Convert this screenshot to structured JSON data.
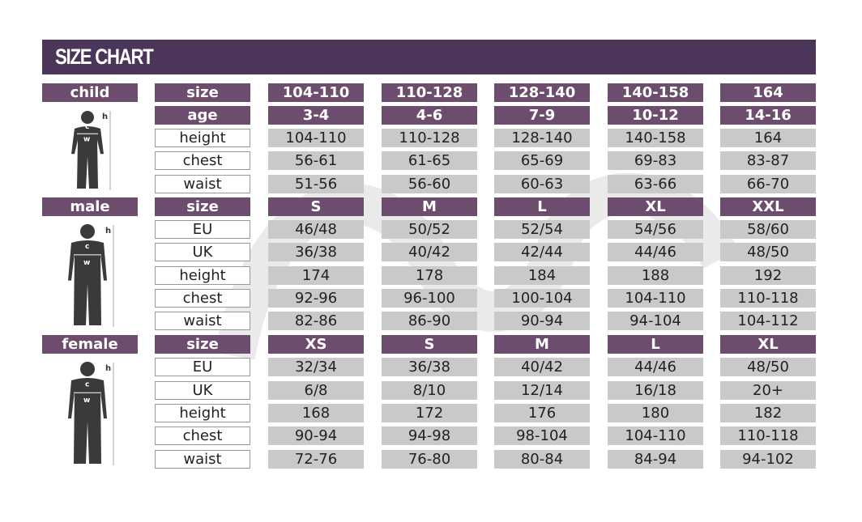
{
  "title": "SIZE CHART",
  "colors": {
    "header": "#4b3559",
    "label": "#6d4d6d",
    "value": "#c9c9c9"
  },
  "groups": [
    {
      "name": "child",
      "figure_icon": "child-silhouette-icon",
      "rows": [
        {
          "label": "size",
          "style": "purple",
          "values": [
            "104-110",
            "110-128",
            "128-140",
            "140-158",
            "164"
          ]
        },
        {
          "label": "age",
          "style": "purple",
          "values": [
            "3-4",
            "4-6",
            "7-9",
            "10-12",
            "14-16"
          ]
        },
        {
          "label": "height",
          "style": "gray",
          "values": [
            "104-110",
            "110-128",
            "128-140",
            "140-158",
            "164"
          ]
        },
        {
          "label": "chest",
          "style": "gray",
          "values": [
            "56-61",
            "61-65",
            "65-69",
            "69-83",
            "83-87"
          ]
        },
        {
          "label": "waist",
          "style": "gray",
          "values": [
            "51-56",
            "56-60",
            "60-63",
            "63-66",
            "66-70"
          ]
        }
      ]
    },
    {
      "name": "male",
      "figure_icon": "male-silhouette-icon",
      "rows": [
        {
          "label": "size",
          "style": "purple",
          "values": [
            "S",
            "M",
            "L",
            "XL",
            "XXL"
          ]
        },
        {
          "label": "EU",
          "style": "gray",
          "values": [
            "46/48",
            "50/52",
            "52/54",
            "54/56",
            "58/60"
          ]
        },
        {
          "label": "UK",
          "style": "gray",
          "values": [
            "36/38",
            "40/42",
            "42/44",
            "44/46",
            "48/50"
          ]
        },
        {
          "label": "height",
          "style": "gray",
          "values": [
            "174",
            "178",
            "184",
            "188",
            "192"
          ]
        },
        {
          "label": "chest",
          "style": "gray",
          "values": [
            "92-96",
            "96-100",
            "100-104",
            "104-110",
            "110-118"
          ]
        },
        {
          "label": "waist",
          "style": "gray",
          "values": [
            "82-86",
            "86-90",
            "90-94",
            "94-104",
            "104-112"
          ]
        }
      ]
    },
    {
      "name": "female",
      "figure_icon": "female-silhouette-icon",
      "rows": [
        {
          "label": "size",
          "style": "purple",
          "values": [
            "XS",
            "S",
            "M",
            "L",
            "XL"
          ]
        },
        {
          "label": "EU",
          "style": "gray",
          "values": [
            "32/34",
            "36/38",
            "40/42",
            "44/46",
            "48/50"
          ]
        },
        {
          "label": "UK",
          "style": "gray",
          "values": [
            "6/8",
            "8/10",
            "12/14",
            "16/18",
            "20+"
          ]
        },
        {
          "label": "height",
          "style": "gray",
          "values": [
            "168",
            "172",
            "176",
            "180",
            "182"
          ]
        },
        {
          "label": "chest",
          "style": "gray",
          "values": [
            "90-94",
            "94-98",
            "98-104",
            "104-110",
            "110-118"
          ]
        },
        {
          "label": "waist",
          "style": "gray",
          "values": [
            "72-76",
            "76-80",
            "80-84",
            "84-94",
            "94-102"
          ]
        }
      ]
    }
  ],
  "figure_marks": {
    "h": "h",
    "c": "c",
    "w": "w"
  }
}
